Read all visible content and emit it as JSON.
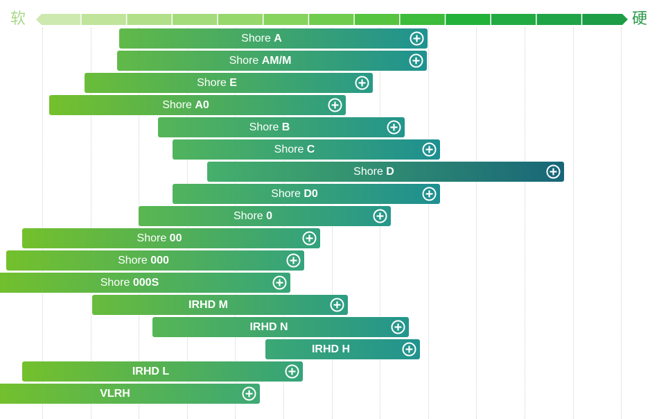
{
  "scale": {
    "soft_label": "软",
    "hard_label": "硬",
    "segment_colors": [
      "#cde9b0",
      "#bfe49a",
      "#b2e08a",
      "#a4dc7c",
      "#97d86d",
      "#86d35e",
      "#6fcc4c",
      "#56c43f",
      "#3dbb3a",
      "#23b13a",
      "#22ab43",
      "#1fa447",
      "#1c9d46"
    ]
  },
  "bars": [
    {
      "prefix": "Shore ",
      "code": "A",
      "start": 1.6,
      "end": 7.99
    },
    {
      "prefix": "Shore ",
      "code": "AM/M",
      "start": 1.55,
      "end": 7.97
    },
    {
      "prefix": "Shore ",
      "code": "E",
      "start": 0.87,
      "end": 6.86
    },
    {
      "prefix": "Shore ",
      "code": "A0",
      "start": 0.15,
      "end": 6.29
    },
    {
      "prefix": "Shore ",
      "code": "B",
      "start": 2.4,
      "end": 7.51
    },
    {
      "prefix": "Shore ",
      "code": "C",
      "start": 2.7,
      "end": 8.24
    },
    {
      "prefix": "Shore ",
      "code": "D",
      "start": 3.42,
      "end": 10.82
    },
    {
      "prefix": "Shore ",
      "code": "D0",
      "start": 2.7,
      "end": 8.24
    },
    {
      "prefix": "Shore ",
      "code": "0",
      "start": 1.99,
      "end": 7.23
    },
    {
      "prefix": "Shore ",
      "code": "00",
      "start": -0.42,
      "end": 5.76
    },
    {
      "prefix": "Shore ",
      "code": "000",
      "start": -0.75,
      "end": 5.43
    },
    {
      "prefix": "Shore ",
      "code": "000S",
      "start": -1.04,
      "end": 5.14
    },
    {
      "prefix": "",
      "code": "IRHD M",
      "start": 1.04,
      "end": 6.33
    },
    {
      "prefix": "",
      "code": "IRHD N",
      "start": 2.29,
      "end": 7.6
    },
    {
      "prefix": "",
      "code": "IRHD H",
      "start": 4.62,
      "end": 7.83
    },
    {
      "prefix": "",
      "code": "IRHD L",
      "start": -0.42,
      "end": 5.4
    },
    {
      "prefix": "",
      "code": "VLRH",
      "start": -1.01,
      "end": 4.51
    }
  ]
}
